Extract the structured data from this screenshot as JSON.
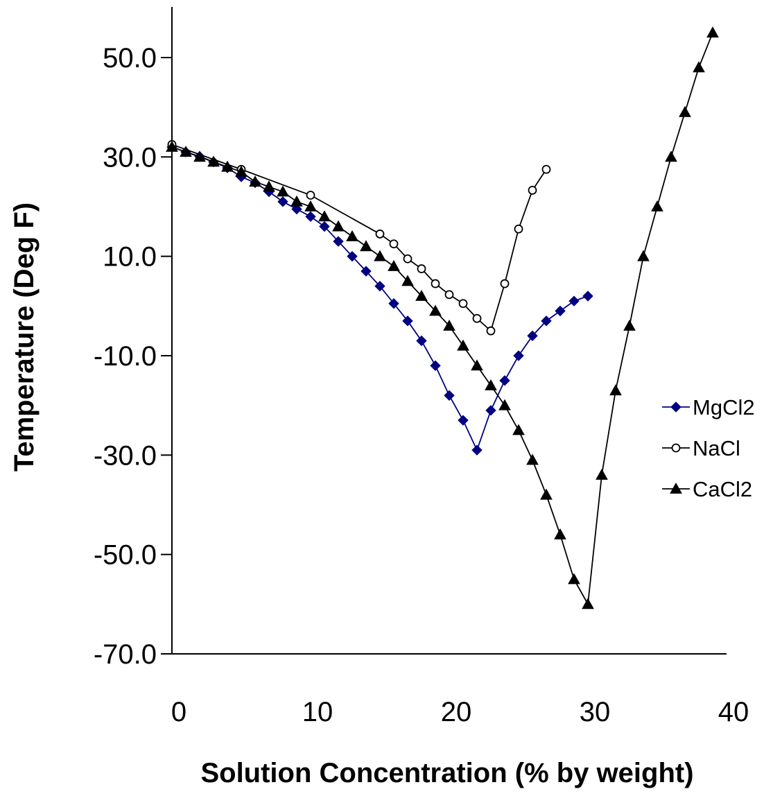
{
  "chart_data": {
    "type": "line",
    "xlabel": "Solution Concentration (% by weight)",
    "ylabel": "Temperature (Deg F)",
    "xlim": [
      0,
      40
    ],
    "ylim": [
      -70,
      60
    ],
    "x_ticks": [
      0,
      10,
      20,
      30,
      40
    ],
    "x_tick_labels": [
      "0",
      "10",
      "20",
      "30",
      "40"
    ],
    "y_ticks": [
      50,
      30,
      10,
      -10,
      -30,
      -50,
      -70
    ],
    "y_tick_labels": [
      "50.0",
      "30.0",
      "10.0",
      "-10.0",
      "-30.0",
      "-50.0",
      "-70.0"
    ],
    "grid": false,
    "legend_position": "right",
    "series": [
      {
        "name": "MgCl2",
        "color": "#000080",
        "marker": "diamond",
        "points": [
          [
            0,
            32
          ],
          [
            1,
            31
          ],
          [
            2,
            30.1
          ],
          [
            3,
            29
          ],
          [
            4,
            27.8
          ],
          [
            5,
            26
          ],
          [
            6,
            24.8
          ],
          [
            7,
            23
          ],
          [
            8,
            21
          ],
          [
            9,
            19.5
          ],
          [
            10,
            18
          ],
          [
            11,
            16
          ],
          [
            12,
            13
          ],
          [
            13,
            10
          ],
          [
            14,
            7
          ],
          [
            15,
            4
          ],
          [
            16,
            0.5
          ],
          [
            17,
            -3
          ],
          [
            18,
            -7
          ],
          [
            19,
            -12
          ],
          [
            20,
            -18
          ],
          [
            21,
            -23
          ],
          [
            22,
            -29
          ],
          [
            23,
            -21
          ],
          [
            24,
            -15
          ],
          [
            25,
            -10
          ],
          [
            26,
            -6
          ],
          [
            27,
            -3
          ],
          [
            28,
            -1
          ],
          [
            29,
            1
          ],
          [
            30,
            2
          ]
        ]
      },
      {
        "name": "NaCl",
        "color": "#000000",
        "marker": "circle",
        "points": [
          [
            0,
            32.5
          ],
          [
            5,
            27.5
          ],
          [
            10,
            22.3
          ],
          [
            15,
            14.5
          ],
          [
            16,
            12.5
          ],
          [
            17,
            9.5
          ],
          [
            18,
            7.5
          ],
          [
            19,
            4.5
          ],
          [
            20,
            2.3
          ],
          [
            21,
            0.5
          ],
          [
            22,
            -2.5
          ],
          [
            23,
            -5
          ],
          [
            24,
            4.5
          ],
          [
            25,
            15.5
          ],
          [
            26,
            23.3
          ],
          [
            27,
            27.5
          ]
        ]
      },
      {
        "name": "CaCl2",
        "color": "#000000",
        "marker": "triangle",
        "points": [
          [
            0,
            32
          ],
          [
            1,
            31
          ],
          [
            2,
            30
          ],
          [
            3,
            29
          ],
          [
            4,
            28
          ],
          [
            5,
            27
          ],
          [
            6,
            25
          ],
          [
            7,
            24
          ],
          [
            8,
            23
          ],
          [
            9,
            21
          ],
          [
            10,
            20
          ],
          [
            11,
            18
          ],
          [
            12,
            16
          ],
          [
            13,
            14
          ],
          [
            14,
            12
          ],
          [
            15,
            10
          ],
          [
            16,
            8
          ],
          [
            17,
            5
          ],
          [
            18,
            2
          ],
          [
            19,
            -1
          ],
          [
            20,
            -4
          ],
          [
            21,
            -8
          ],
          [
            22,
            -12
          ],
          [
            23,
            -16
          ],
          [
            24,
            -20
          ],
          [
            25,
            -25
          ],
          [
            26,
            -31
          ],
          [
            27,
            -38
          ],
          [
            28,
            -46
          ],
          [
            29,
            -55
          ],
          [
            30,
            -60
          ],
          [
            31,
            -34
          ],
          [
            32,
            -17
          ],
          [
            33,
            -4
          ],
          [
            34,
            10
          ],
          [
            35,
            20
          ],
          [
            36,
            30
          ],
          [
            37,
            39
          ],
          [
            38,
            48
          ],
          [
            39,
            55
          ]
        ]
      }
    ]
  }
}
